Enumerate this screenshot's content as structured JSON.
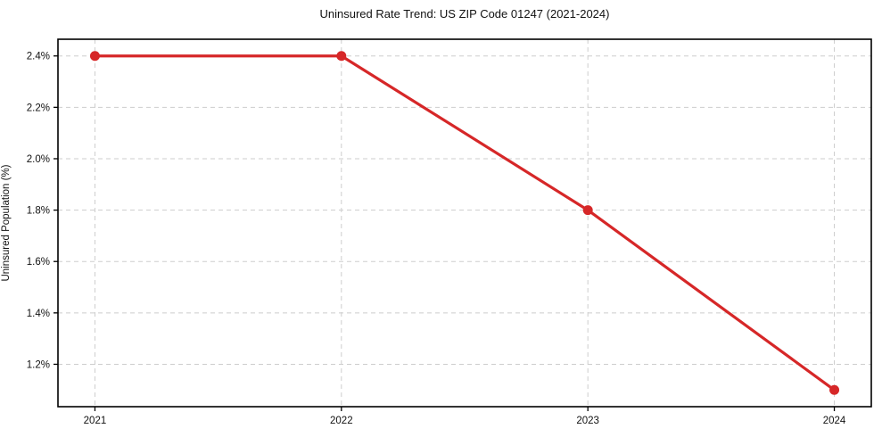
{
  "chart_data": {
    "type": "line",
    "title": "Uninsured Rate Trend: US ZIP Code 01247 (2021-2024)",
    "xlabel": "",
    "ylabel": "Uninsured Population (%)",
    "x": [
      2021,
      2022,
      2023,
      2024
    ],
    "x_tick_labels": [
      "2021",
      "2022",
      "2023",
      "2024"
    ],
    "series": [
      {
        "name": "Uninsured rate",
        "values": [
          2.4,
          2.4,
          1.8,
          1.1
        ]
      }
    ],
    "y_ticks": [
      1.2,
      1.4,
      1.6,
      1.8,
      2.0,
      2.2,
      2.4
    ],
    "y_tick_labels": [
      "1.2%",
      "1.4%",
      "1.6%",
      "1.8%",
      "2.0%",
      "2.2%",
      "2.4%"
    ],
    "ylim": [
      1.035,
      2.465
    ],
    "xlim": [
      2020.85,
      2024.15
    ],
    "grid": true,
    "legend": "none",
    "line_color": "#d62728"
  }
}
